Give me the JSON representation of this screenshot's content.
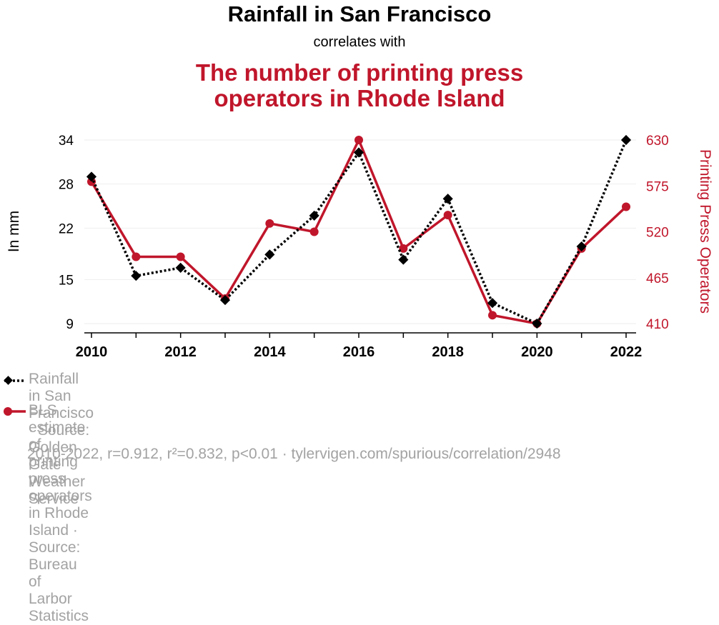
{
  "header": {
    "title": "Rainfall in San Francisco",
    "subtitle": "correlates with",
    "title2_line1": "The number of printing press",
    "title2_line2": "operators in Rhode Island"
  },
  "legend": {
    "series1": "Rainfall in San Francisco · Source: Golden Gate Weather Service",
    "series2_line1": "BLS estimate of printing press operators in Rhode Island · Source: Bureau of",
    "series2_line2": "Larbor Statistics"
  },
  "footer": "2010-2022, r=0.912, r²=0.832, p<0.01 · tylervigen.com/spurious/correlation/2948",
  "colors": {
    "series1": "#000000",
    "series2": "#c0162b",
    "grid": "#eeeeee",
    "legend_text": "#a3a3a3"
  },
  "chart_data": {
    "type": "line",
    "x": [
      2010,
      2011,
      2012,
      2013,
      2014,
      2015,
      2016,
      2017,
      2018,
      2019,
      2020,
      2021,
      2022
    ],
    "xticks": [
      "2010",
      "2012",
      "2014",
      "2016",
      "2018",
      "2020",
      "2022"
    ],
    "ylabel_left": "In mm",
    "ylabel_right": "Printing Press Operators",
    "yticks_left": [
      "34",
      "28",
      "22",
      "15",
      "9"
    ],
    "yticks_right": [
      "630",
      "575",
      "520",
      "465",
      "410"
    ],
    "ylim_left": [
      9,
      34
    ],
    "ylim_right": [
      410,
      630
    ],
    "grid": true,
    "series": [
      {
        "name": "Rainfall in San Francisco",
        "axis": "left",
        "style": "dotted",
        "marker": "diamond",
        "values": [
          29,
          15.5,
          16.6,
          12.2,
          18.4,
          23.7,
          32.3,
          17.7,
          26,
          11.8,
          9,
          19.5,
          34
        ]
      },
      {
        "name": "BLS estimate of printing press operators in Rhode Island",
        "axis": "right",
        "style": "solid",
        "marker": "circle",
        "values": [
          580,
          490,
          490,
          440,
          530,
          520,
          630,
          500,
          540,
          420,
          410,
          500,
          550
        ]
      }
    ]
  }
}
